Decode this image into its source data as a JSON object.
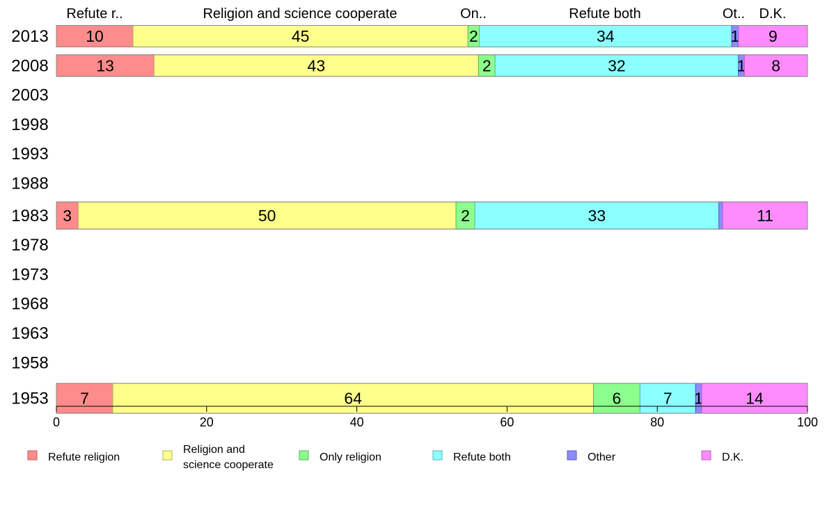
{
  "chart_data": {
    "type": "bar",
    "orientation": "horizontal",
    "stacked": true,
    "xlim": [
      0,
      100
    ],
    "x_ticks": [
      0,
      20,
      40,
      60,
      80,
      100
    ],
    "years": [
      "2013",
      "2008",
      "2003",
      "1998",
      "1993",
      "1988",
      "1983",
      "1978",
      "1973",
      "1968",
      "1963",
      "1958",
      "1953"
    ],
    "top_labels": [
      "Refute r..",
      "Religion and science cooperate",
      "On..",
      "Refute both",
      "Ot..",
      "D.K."
    ],
    "series": [
      {
        "name": "Refute religion",
        "legend": [
          "Refute religion"
        ],
        "color": "#ff8c8c",
        "border": "#c05a5a"
      },
      {
        "name": "Religion and science cooperate",
        "legend": [
          "Religion and",
          "science cooperate"
        ],
        "color": "#ffff8c",
        "border": "#b0b05a"
      },
      {
        "name": "Only religion",
        "legend": [
          "Only religion"
        ],
        "color": "#8cff8c",
        "border": "#5ab05a"
      },
      {
        "name": "Refute both",
        "legend": [
          "Refute both"
        ],
        "color": "#8cffff",
        "border": "#5ab0b0"
      },
      {
        "name": "Other",
        "legend": [
          "Other"
        ],
        "color": "#8c8cff",
        "border": "#5a5ac0"
      },
      {
        "name": "D.K.",
        "legend": [
          "D.K."
        ],
        "color": "#ff8cff",
        "border": "#c05ac0"
      }
    ],
    "bars": [
      {
        "year": "2013",
        "values": [
          10.2,
          44.6,
          1.5,
          33.6,
          0.9,
          9.2
        ],
        "labels": [
          "10",
          "45",
          "2",
          "34",
          "1",
          "9"
        ]
      },
      {
        "year": "2008",
        "values": [
          13.0,
          43.2,
          2.2,
          32.4,
          0.8,
          8.4
        ],
        "labels": [
          "13",
          "43",
          "2",
          "32",
          "1",
          "8"
        ]
      },
      {
        "year": "1983",
        "values": [
          2.9,
          50.3,
          2.5,
          32.5,
          0.5,
          11.3
        ],
        "labels": [
          "3",
          "50",
          "2",
          "33",
          "",
          "11"
        ]
      },
      {
        "year": "1953",
        "values": [
          7.5,
          64.0,
          6.2,
          7.4,
          0.8,
          14.1
        ],
        "labels": [
          "7",
          "64",
          "6",
          "7",
          "1",
          "14"
        ]
      }
    ]
  }
}
